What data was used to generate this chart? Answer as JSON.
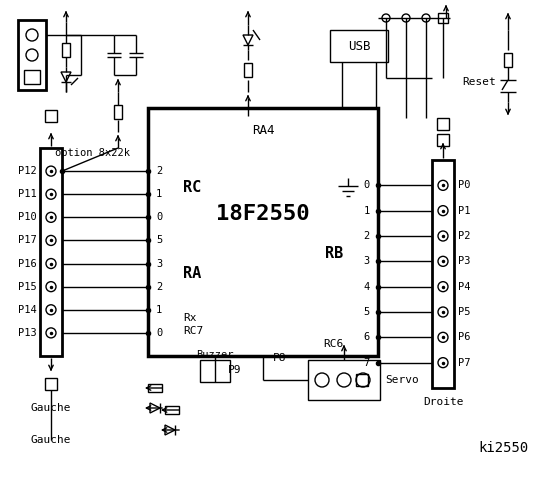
{
  "bg_color": "#ffffff",
  "lc": "#000000",
  "title": "ki2550",
  "chip_label": "18F2550",
  "chip_ra4": "RA4",
  "chip_rc": "RC",
  "chip_ra": "RA",
  "chip_rb": "RB",
  "chip_rx": "Rx",
  "chip_rc7": "RC7",
  "chip_rc6": "RC6",
  "left_pins": [
    "P12",
    "P11",
    "P10",
    "P17",
    "P16",
    "P15",
    "P14",
    "P13"
  ],
  "left_rc_nums": [
    "2",
    "1",
    "0",
    "5",
    "3",
    "2",
    "1",
    "0"
  ],
  "right_rb_nums": [
    "0",
    "1",
    "2",
    "3",
    "4",
    "5",
    "6",
    "7"
  ],
  "right_pins": [
    "P0",
    "P1",
    "P2",
    "P3",
    "P4",
    "P5",
    "P6",
    "P7"
  ],
  "label_gauche": "Gauche",
  "label_droite": "Droite",
  "label_buzzer": "Buzzer",
  "label_servo": "Servo",
  "label_usb": "USB",
  "label_reset": "Reset",
  "label_option": "option 8x22k",
  "label_p9": "P9",
  "label_p8": "P8"
}
